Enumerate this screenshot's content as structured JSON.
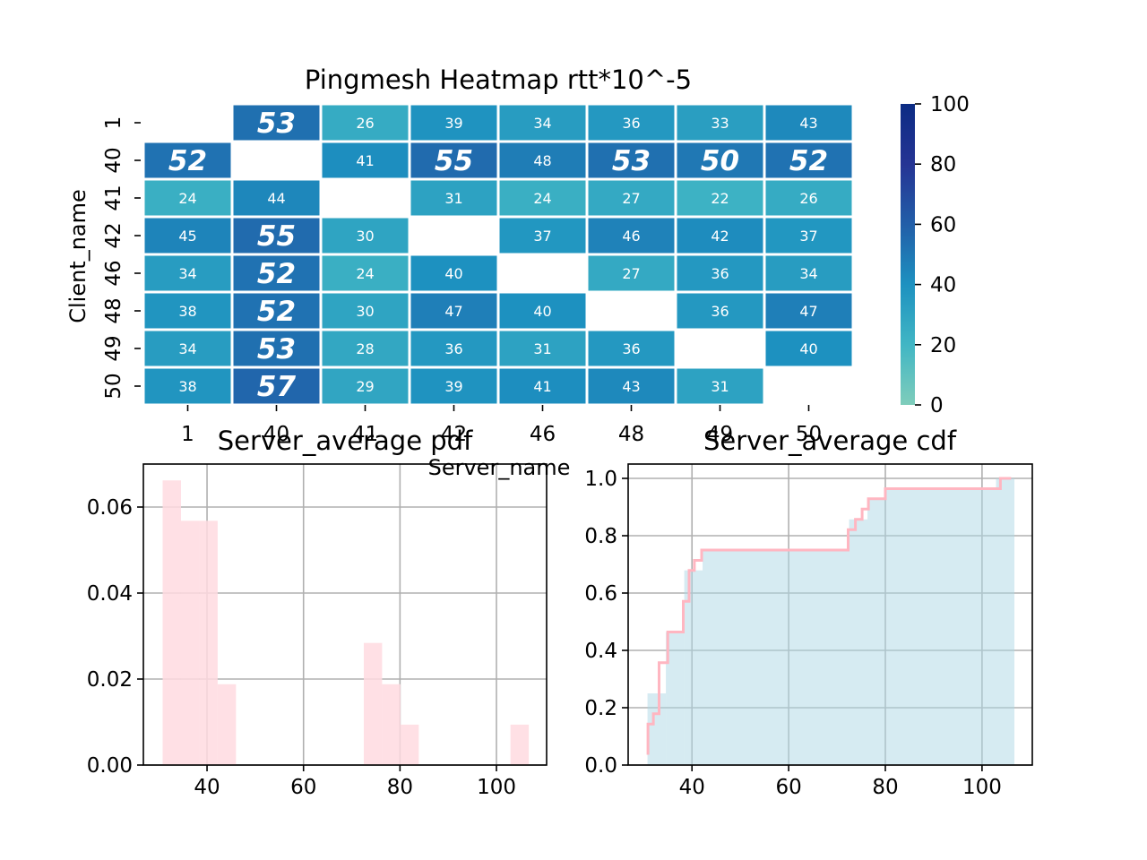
{
  "chart_data": [
    {
      "type": "heatmap",
      "title": "Pingmesh Heatmap rtt*10^-5",
      "xlabel": "Server_name",
      "ylabel": "Client_name",
      "x_categories": [
        "1",
        "40",
        "41",
        "42",
        "46",
        "48",
        "49",
        "50"
      ],
      "y_categories": [
        "1",
        "40",
        "41",
        "42",
        "46",
        "48",
        "49",
        "50"
      ],
      "values": [
        [
          null,
          53,
          26,
          39,
          34,
          36,
          33,
          43
        ],
        [
          52,
          null,
          41,
          55,
          48,
          53,
          50,
          52
        ],
        [
          24,
          44,
          null,
          31,
          24,
          27,
          22,
          26
        ],
        [
          45,
          55,
          30,
          null,
          37,
          46,
          42,
          37
        ],
        [
          34,
          52,
          24,
          40,
          null,
          27,
          36,
          34
        ],
        [
          38,
          52,
          30,
          47,
          40,
          null,
          36,
          47
        ],
        [
          34,
          53,
          28,
          36,
          31,
          36,
          null,
          40
        ],
        [
          38,
          57,
          29,
          39,
          41,
          43,
          31,
          null
        ]
      ],
      "highlight_threshold": 50,
      "colorbar": {
        "min": 0,
        "max": 100,
        "ticks": [
          0,
          20,
          40,
          60,
          80,
          100
        ]
      },
      "colors": {
        "low": "#7fcdbb",
        "mid": "#1d91c0",
        "high": "#0c2c84",
        "empty": "#ffffff"
      }
    },
    {
      "type": "bar",
      "subtype": "histogram",
      "title": "Server_average pdf",
      "xlim": [
        26.8,
        110.4
      ],
      "ylim": [
        0,
        0.07
      ],
      "xticks": [
        40,
        60,
        80,
        100
      ],
      "yticks": [
        "0.00",
        "0.02",
        "0.04",
        "0.06"
      ],
      "grid": true,
      "bar_color": "#ffdae1",
      "bins": [
        {
          "x0": 30.8,
          "x1": 34.6,
          "value": 0.0662
        },
        {
          "x0": 34.6,
          "x1": 38.4,
          "value": 0.0568
        },
        {
          "x0": 38.4,
          "x1": 42.2,
          "value": 0.0568
        },
        {
          "x0": 42.2,
          "x1": 46.0,
          "value": 0.0188
        },
        {
          "x0": 72.5,
          "x1": 76.3,
          "value": 0.0284
        },
        {
          "x0": 76.3,
          "x1": 80.1,
          "value": 0.0188
        },
        {
          "x0": 80.1,
          "x1": 83.9,
          "value": 0.0094
        },
        {
          "x0": 102.9,
          "x1": 106.7,
          "value": 0.0094
        }
      ]
    },
    {
      "type": "area",
      "subtype": "cumulative histogram with step line",
      "title": "Server_average cdf",
      "xlim": [
        26.8,
        110.4
      ],
      "ylim": [
        0,
        1.05
      ],
      "xticks": [
        40,
        60,
        80,
        100
      ],
      "yticks": [
        "0.0",
        "0.2",
        "0.4",
        "0.6",
        "0.8",
        "1.0"
      ],
      "grid": true,
      "fill_color": "#add8e6",
      "line_color": "#ffb6c1",
      "bins": [
        {
          "x0": 30.8,
          "x1": 34.6,
          "value": 0.25
        },
        {
          "x0": 34.6,
          "x1": 38.4,
          "value": 0.464
        },
        {
          "x0": 38.4,
          "x1": 42.2,
          "value": 0.679
        },
        {
          "x0": 42.2,
          "x1": 72.5,
          "value": 0.75
        },
        {
          "x0": 72.5,
          "x1": 76.3,
          "value": 0.857
        },
        {
          "x0": 76.3,
          "x1": 80.1,
          "value": 0.929
        },
        {
          "x0": 80.1,
          "x1": 102.9,
          "value": 0.964
        },
        {
          "x0": 102.9,
          "x1": 106.7,
          "value": 1.0
        }
      ],
      "step_line": [
        [
          30.9,
          0.036
        ],
        [
          30.9,
          0.143
        ],
        [
          32.0,
          0.143
        ],
        [
          32.0,
          0.179
        ],
        [
          33.2,
          0.179
        ],
        [
          33.2,
          0.357
        ],
        [
          35.0,
          0.357
        ],
        [
          35.0,
          0.464
        ],
        [
          38.2,
          0.464
        ],
        [
          38.2,
          0.571
        ],
        [
          39.4,
          0.571
        ],
        [
          39.4,
          0.679
        ],
        [
          40.5,
          0.679
        ],
        [
          40.5,
          0.714
        ],
        [
          42.0,
          0.714
        ],
        [
          42.0,
          0.75
        ],
        [
          72.3,
          0.75
        ],
        [
          72.3,
          0.821
        ],
        [
          73.8,
          0.821
        ],
        [
          73.8,
          0.857
        ],
        [
          75.2,
          0.857
        ],
        [
          75.2,
          0.893
        ],
        [
          76.5,
          0.893
        ],
        [
          76.5,
          0.929
        ],
        [
          80.0,
          0.929
        ],
        [
          80.0,
          0.964
        ],
        [
          103.8,
          0.964
        ],
        [
          103.8,
          1.0
        ],
        [
          106.0,
          1.0
        ]
      ]
    }
  ]
}
